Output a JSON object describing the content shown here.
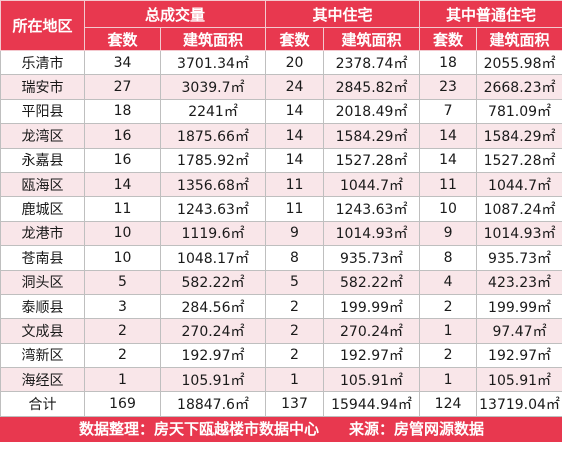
{
  "header": {
    "region": "所在地区",
    "groups": [
      "总成交量",
      "其中住宅",
      "其中普通住宅"
    ],
    "sub": [
      "套数",
      "建筑面积",
      "套数",
      "建筑面积",
      "套数",
      "建筑面积"
    ]
  },
  "rows": [
    [
      "乐清市",
      "34",
      "3701.34㎡",
      "20",
      "2378.74㎡",
      "18",
      "2055.98㎡"
    ],
    [
      "瑞安市",
      "27",
      "3039.7㎡",
      "24",
      "2845.82㎡",
      "23",
      "2668.23㎡"
    ],
    [
      "平阳县",
      "18",
      "2241㎡",
      "14",
      "2018.49㎡",
      "7",
      "781.09㎡"
    ],
    [
      "龙湾区",
      "16",
      "1875.66㎡",
      "14",
      "1584.29㎡",
      "14",
      "1584.29㎡"
    ],
    [
      "永嘉县",
      "16",
      "1785.92㎡",
      "14",
      "1527.28㎡",
      "14",
      "1527.28㎡"
    ],
    [
      "瓯海区",
      "14",
      "1356.68㎡",
      "11",
      "1044.7㎡",
      "11",
      "1044.7㎡"
    ],
    [
      "鹿城区",
      "11",
      "1243.63㎡",
      "11",
      "1243.63㎡",
      "10",
      "1087.24㎡"
    ],
    [
      "龙港市",
      "10",
      "1119.6㎡",
      "9",
      "1014.93㎡",
      "9",
      "1014.93㎡"
    ],
    [
      "苍南县",
      "10",
      "1048.17㎡",
      "8",
      "935.73㎡",
      "8",
      "935.73㎡"
    ],
    [
      "洞头区",
      "5",
      "582.22㎡",
      "5",
      "582.22㎡",
      "4",
      "423.23㎡"
    ],
    [
      "泰顺县",
      "3",
      "284.56㎡",
      "2",
      "199.99㎡",
      "2",
      "199.99㎡"
    ],
    [
      "文成县",
      "2",
      "270.24㎡",
      "2",
      "270.24㎡",
      "1",
      "97.47㎡"
    ],
    [
      "湾新区",
      "2",
      "192.97㎡",
      "2",
      "192.97㎡",
      "2",
      "192.97㎡"
    ],
    [
      "海经区",
      "1",
      "105.91㎡",
      "1",
      "105.91㎡",
      "1",
      "105.91㎡"
    ]
  ],
  "total": [
    "合计",
    "169",
    "18847.6㎡",
    "137",
    "15944.94㎡",
    "124",
    "13719.04㎡"
  ],
  "footer": "数据整理：房天下瓯越楼市数据中心　　来源：房管网源数据"
}
